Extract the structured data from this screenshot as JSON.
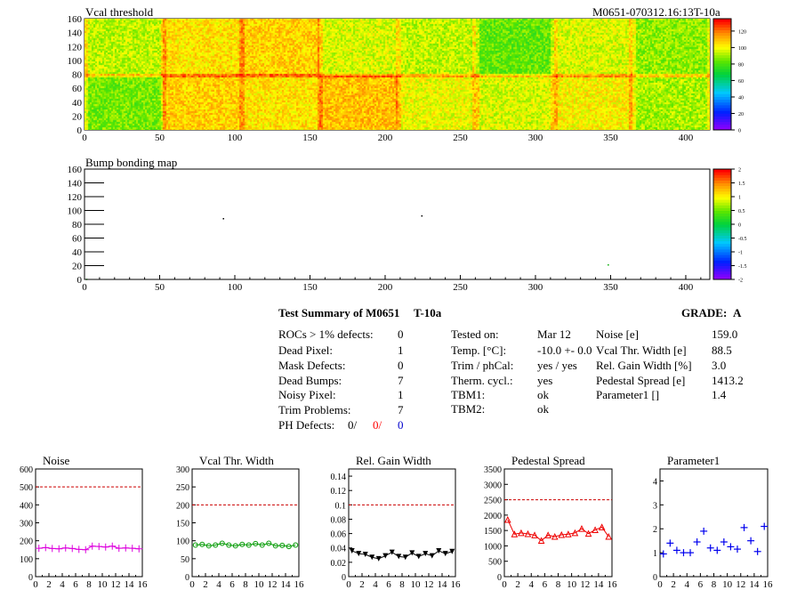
{
  "vcal_map": {
    "title": "Vcal threshold",
    "module_id": "M0651-070312.16:13T-10a",
    "x_ticks": [
      0,
      50,
      100,
      150,
      200,
      250,
      300,
      350,
      400
    ],
    "y_ticks": [
      0,
      20,
      40,
      60,
      80,
      100,
      120,
      140,
      160
    ],
    "palette_labels": [
      "120",
      "100",
      "80",
      "60",
      "40",
      "20",
      "0"
    ],
    "zrange": [
      0,
      135
    ]
  },
  "bump_map": {
    "title": "Bump bonding map",
    "x_ticks": [
      0,
      50,
      100,
      150,
      200,
      250,
      300,
      350,
      400
    ],
    "y_ticks": [
      0,
      20,
      40,
      60,
      80,
      100,
      120,
      140,
      160
    ],
    "palette_labels": [
      "2",
      "1.5",
      "1",
      "0.5",
      "0",
      "-0.5",
      "-1",
      "-1.5",
      "-2"
    ]
  },
  "summary": {
    "title": "Test Summary of M0651",
    "tag": "T-10a",
    "grade_label": "GRADE:",
    "grade": "A",
    "defects": [
      {
        "label": "ROCs > 1% defects:",
        "value": "0"
      },
      {
        "label": "Dead Pixel:",
        "value": "1"
      },
      {
        "label": "Mask Defects:",
        "value": "0"
      },
      {
        "label": "Dead Bumps:",
        "value": "7"
      },
      {
        "label": "Noisy Pixel:",
        "value": "1"
      },
      {
        "label": "Trim Problems:",
        "value": "7"
      }
    ],
    "ph_defects": {
      "label": "PH Defects:",
      "v1": "0/",
      "v2": "0/",
      "v3": "0",
      "c2": "#ff0000",
      "c3": "#0000cc"
    },
    "conditions": [
      {
        "label": "Tested on:",
        "value": "Mar 12"
      },
      {
        "label": "Temp. [°C]:",
        "value": "-10.0 +- 0.0"
      },
      {
        "label": "Trim / phCal:",
        "value": "yes / yes"
      },
      {
        "label": "Therm. cycl.:",
        "value": "yes"
      },
      {
        "label": "TBM1:",
        "value": "ok"
      },
      {
        "label": "TBM2:",
        "value": "ok"
      }
    ],
    "results": [
      {
        "label": "Noise [e]",
        "value": "159.0"
      },
      {
        "label": "Vcal Thr. Width [e]",
        "value": "88.5"
      },
      {
        "label": "Rel. Gain Width [%]",
        "value": "3.0"
      },
      {
        "label": "Pedestal Spread [e]",
        "value": "1413.2"
      },
      {
        "label": "Parameter1 []",
        "value": "1.4"
      }
    ]
  },
  "chart_data": [
    {
      "type": "line",
      "title": "Noise",
      "color": "#dd00dd",
      "marker": "plus",
      "x_ticks": [
        "0",
        "2",
        "4",
        "6",
        "8",
        "10",
        "12",
        "14",
        "16"
      ],
      "ylim": [
        0,
        600
      ],
      "y_ticks": [
        "0",
        "100",
        "200",
        "300",
        "400",
        "500",
        "600"
      ],
      "limit": 500,
      "x": [
        0,
        1,
        2,
        3,
        4,
        5,
        6,
        7,
        8,
        9,
        10,
        11,
        12,
        13,
        14,
        15
      ],
      "values": [
        158,
        162,
        157,
        155,
        160,
        157,
        152,
        150,
        170,
        168,
        165,
        170,
        158,
        160,
        158,
        155
      ]
    },
    {
      "type": "line",
      "title": "Vcal Thr. Width",
      "color": "#009900",
      "marker": "circle",
      "x_ticks": [
        "0",
        "2",
        "4",
        "6",
        "8",
        "10",
        "12",
        "14",
        "16"
      ],
      "ylim": [
        0,
        300
      ],
      "y_ticks": [
        "0",
        "50",
        "100",
        "150",
        "200",
        "250",
        "300"
      ],
      "limit": 200,
      "x": [
        0,
        1,
        2,
        3,
        4,
        5,
        6,
        7,
        8,
        9,
        10,
        11,
        12,
        13,
        14,
        15
      ],
      "values": [
        88,
        90,
        86,
        88,
        93,
        88,
        86,
        90,
        88,
        92,
        88,
        93,
        86,
        87,
        84,
        88
      ]
    },
    {
      "type": "line",
      "title": "Rel. Gain Width",
      "color": "#000000",
      "marker": "tri-down",
      "x_ticks": [
        "0",
        "2",
        "4",
        "6",
        "8",
        "10",
        "12",
        "14",
        "16"
      ],
      "ylim": [
        0,
        0.15
      ],
      "y_ticks": [
        "0",
        "0.02",
        "0.04",
        "0.06",
        "0.08",
        "0.1",
        "0.12",
        "0.14"
      ],
      "limit": 0.1,
      "x": [
        0,
        1,
        2,
        3,
        4,
        5,
        6,
        7,
        8,
        9,
        10,
        11,
        12,
        13,
        14,
        15
      ],
      "values": [
        0.036,
        0.032,
        0.031,
        0.027,
        0.025,
        0.029,
        0.034,
        0.028,
        0.027,
        0.033,
        0.028,
        0.032,
        0.029,
        0.036,
        0.032,
        0.035
      ]
    },
    {
      "type": "line",
      "title": "Pedestal Spread",
      "color": "#ee0000",
      "marker": "tri-up",
      "x_ticks": [
        "0",
        "2",
        "4",
        "6",
        "8",
        "10",
        "12",
        "14",
        "16"
      ],
      "ylim": [
        0,
        3500
      ],
      "y_ticks": [
        "0",
        "500",
        "1000",
        "1500",
        "2000",
        "2500",
        "3000",
        "3500"
      ],
      "limit": 2500,
      "x": [
        0,
        1,
        2,
        3,
        4,
        5,
        6,
        7,
        8,
        9,
        10,
        11,
        12,
        13,
        14,
        15
      ],
      "values": [
        1850,
        1380,
        1420,
        1390,
        1350,
        1170,
        1350,
        1300,
        1360,
        1380,
        1420,
        1560,
        1400,
        1520,
        1610,
        1300
      ]
    },
    {
      "type": "scatter",
      "title": "Parameter1",
      "color": "#0000ee",
      "marker": "cross",
      "x_ticks": [
        "0",
        "2",
        "4",
        "6",
        "8",
        "10",
        "12",
        "14",
        "16"
      ],
      "ylim": [
        0,
        4.5
      ],
      "y_ticks": [
        "0",
        "1",
        "2",
        "3",
        "4"
      ],
      "x": [
        0,
        1,
        2,
        3,
        4,
        5,
        6,
        7,
        8,
        9,
        10,
        11,
        12,
        13,
        14,
        15
      ],
      "values": [
        0.95,
        1.4,
        1.1,
        1.0,
        1.0,
        1.45,
        1.9,
        1.2,
        1.1,
        1.45,
        1.25,
        1.15,
        2.05,
        1.5,
        1.05,
        2.1
      ]
    }
  ]
}
